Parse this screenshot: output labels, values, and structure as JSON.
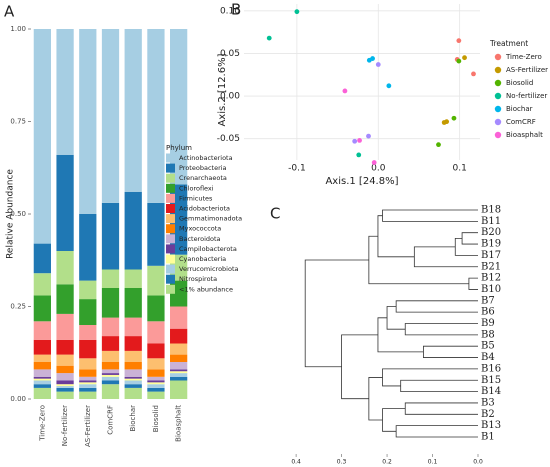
{
  "chart_data": [
    {
      "type": "bar",
      "stacked": true,
      "panel_label": "A",
      "ylabel": "Relative Abundance",
      "legend_title": "Phylum",
      "categories": [
        "Time-Zero",
        "No-fertilizer",
        "AS-Fertilizer",
        "ComCRF",
        "Biochar",
        "Biosolid",
        "Bioasphalt"
      ],
      "ylim": [
        0,
        1
      ],
      "yticks": [
        {
          "value": 0,
          "label": "0.00"
        },
        {
          "value": 0.25,
          "label": "0.25"
        },
        {
          "value": 0.5,
          "label": "0.50"
        },
        {
          "value": 0.75,
          "label": "0.75"
        },
        {
          "value": 1,
          "label": "1.00"
        }
      ],
      "series": [
        {
          "name": "Actinobacteriota",
          "color": "#a6cee3",
          "values": [
            0.58,
            0.34,
            0.5,
            0.47,
            0.44,
            0.47,
            0.42
          ]
        },
        {
          "name": "Proteobacteria",
          "color": "#1f78b4",
          "values": [
            0.08,
            0.26,
            0.18,
            0.18,
            0.21,
            0.17,
            0.19
          ]
        },
        {
          "name": "Crenarchaeota",
          "color": "#b2df8a",
          "values": [
            0.06,
            0.09,
            0.05,
            0.05,
            0.05,
            0.08,
            0.07
          ]
        },
        {
          "name": "Chloroflexi",
          "color": "#33a02c",
          "values": [
            0.07,
            0.08,
            0.07,
            0.08,
            0.08,
            0.07,
            0.07
          ]
        },
        {
          "name": "Firmicutes",
          "color": "#fb9a99",
          "values": [
            0.05,
            0.07,
            0.04,
            0.05,
            0.05,
            0.06,
            0.06
          ]
        },
        {
          "name": "Acidobacteriota",
          "color": "#e31a1c",
          "values": [
            0.04,
            0.04,
            0.05,
            0.04,
            0.04,
            0.04,
            0.04
          ]
        },
        {
          "name": "Gemmatimonadota",
          "color": "#fdbf6f",
          "values": [
            0.02,
            0.03,
            0.03,
            0.03,
            0.03,
            0.03,
            0.03
          ]
        },
        {
          "name": "Myxococcota",
          "color": "#ff7f00",
          "values": [
            0.02,
            0.02,
            0.02,
            0.02,
            0.02,
            0.02,
            0.02
          ]
        },
        {
          "name": "Bacteroidota",
          "color": "#cab2d6",
          "values": [
            0.02,
            0.02,
            0.01,
            0.01,
            0.02,
            0.01,
            0.02
          ]
        },
        {
          "name": "Campilobacterota",
          "color": "#6a3d9a",
          "values": [
            0.005,
            0.01,
            0.005,
            0.005,
            0.005,
            0.005,
            0.005
          ]
        },
        {
          "name": "Cyanobacteria",
          "color": "#ffff99",
          "values": [
            0.005,
            0.005,
            0.005,
            0.005,
            0.005,
            0.005,
            0.005
          ]
        },
        {
          "name": "Verrucomicrobiota",
          "color": "#a6cee3",
          "values": [
            0.01,
            0.005,
            0.01,
            0.01,
            0.01,
            0.01,
            0.01
          ]
        },
        {
          "name": "Nitrospirota",
          "color": "#1f78b4",
          "values": [
            0.01,
            0.01,
            0.01,
            0.01,
            0.01,
            0.01,
            0.01
          ]
        },
        {
          "name": "<1% abundance",
          "color": "#b2df8a",
          "values": [
            0.03,
            0.02,
            0.02,
            0.04,
            0.03,
            0.02,
            0.05
          ]
        }
      ]
    },
    {
      "type": "scatter",
      "panel_label": "B",
      "xlabel": "Axis.1  [24.8%]",
      "ylabel": "Axis.2  [12.6%]",
      "legend_title": "Treatment",
      "grid": true,
      "xlim": [
        -0.165,
        0.125
      ],
      "ylim": [
        -0.075,
        0.108
      ],
      "xticks": [
        -0.1,
        {
          "value": 0,
          "label": "0.0"
        },
        0.1
      ],
      "yticks": [
        {
          "value": -0.05,
          "label": "-0.05"
        },
        {
          "value": 0,
          "label": "0.00"
        },
        {
          "value": 0.05,
          "label": "0.05"
        },
        {
          "value": 0.1,
          "label": "0.10"
        }
      ],
      "series": [
        {
          "name": "Time-Zero",
          "color": "#f8766d",
          "x": [
            0.099,
            0.117,
            0.097
          ],
          "y": [
            0.065,
            0.026,
            0.043
          ]
        },
        {
          "name": "AS-Fertilizer",
          "color": "#c49a00",
          "x": [
            0.106,
            0.084,
            0.081
          ],
          "y": [
            0.045,
            -0.03,
            -0.031
          ]
        },
        {
          "name": "Biosolid",
          "color": "#53b400",
          "x": [
            0.099,
            0.093,
            0.074
          ],
          "y": [
            0.041,
            -0.026,
            -0.057
          ]
        },
        {
          "name": "No-fertilizer",
          "color": "#00c094",
          "x": [
            -0.1,
            -0.134,
            -0.024
          ],
          "y": [
            0.099,
            0.068,
            -0.069
          ]
        },
        {
          "name": "Biochar",
          "color": "#00b6eb",
          "x": [
            -0.007,
            0.013,
            -0.011
          ],
          "y": [
            0.044,
            0.012,
            0.042
          ]
        },
        {
          "name": "ComCRF",
          "color": "#a58aff",
          "x": [
            0,
            -0.012,
            -0.029
          ],
          "y": [
            0.037,
            -0.047,
            -0.053
          ]
        },
        {
          "name": "Bioasphalt",
          "color": "#fb61d7",
          "x": [
            -0.041,
            -0.023,
            -0.005
          ],
          "y": [
            0.006,
            -0.052,
            -0.078
          ]
        }
      ]
    },
    {
      "type": "dendrogram",
      "panel_label": "C",
      "xlim": [
        0.42,
        0
      ],
      "xticks": [
        0.4,
        0.3,
        0.2,
        0.1,
        {
          "value": 0,
          "label": "0.0"
        }
      ],
      "leaves": [
        {
          "label": "B18",
          "color": "#fb61d7"
        },
        {
          "label": "B11",
          "color": "#00c094"
        },
        {
          "label": "B20",
          "color": "#fb61d7"
        },
        {
          "label": "B19",
          "color": "#fb61d7"
        },
        {
          "label": "B17",
          "color": "#fb61d7"
        },
        {
          "label": "B21",
          "color": "#fb61d7"
        },
        {
          "label": "B12",
          "color": "#00c094"
        },
        {
          "label": "B10",
          "color": "#00c094"
        },
        {
          "label": "B7",
          "color": "#c49a00"
        },
        {
          "label": "B6",
          "color": "#c49a00"
        },
        {
          "label": "B9",
          "color": "#53b400"
        },
        {
          "label": "B8",
          "color": "#53b400"
        },
        {
          "label": "B5",
          "color": "#c49a00"
        },
        {
          "label": "B4",
          "color": "#c49a00"
        },
        {
          "label": "B16",
          "color": "#a58aff"
        },
        {
          "label": "B15",
          "color": "#00b6eb"
        },
        {
          "label": "B14",
          "color": "#00b6eb"
        },
        {
          "label": "B3",
          "color": "#f8766d"
        },
        {
          "label": "B2",
          "color": "#f8766d"
        },
        {
          "label": "B13",
          "color": "#00b6eb"
        },
        {
          "label": "B1",
          "color": "#f8766d"
        }
      ],
      "merges": [
        {
          "children": [
            2,
            3
          ],
          "height": 0.035
        },
        {
          "children": [
            21,
            4
          ],
          "height": 0.05
        },
        {
          "children": [
            22,
            5
          ],
          "height": 0.14
        },
        {
          "children": [
            0,
            1
          ],
          "height": 0.21
        },
        {
          "children": [
            24,
            23
          ],
          "height": 0.22
        },
        {
          "children": [
            6,
            7
          ],
          "height": 0.02
        },
        {
          "children": [
            25,
            26
          ],
          "height": 0.24
        },
        {
          "children": [
            8,
            9
          ],
          "height": 0.18
        },
        {
          "children": [
            10,
            11
          ],
          "height": 0.16
        },
        {
          "children": [
            28,
            29
          ],
          "height": 0.2
        },
        {
          "children": [
            12,
            13
          ],
          "height": 0.12
        },
        {
          "children": [
            30,
            31
          ],
          "height": 0.22
        },
        {
          "children": [
            17,
            18
          ],
          "height": 0.16
        },
        {
          "children": [
            19,
            20
          ],
          "height": 0.18
        },
        {
          "children": [
            33,
            34
          ],
          "height": 0.21
        },
        {
          "children": [
            15,
            16
          ],
          "height": 0.17
        },
        {
          "children": [
            14,
            36
          ],
          "height": 0.21
        },
        {
          "children": [
            37,
            35
          ],
          "height": 0.24
        },
        {
          "children": [
            32,
            38
          ],
          "height": 0.3
        },
        {
          "children": [
            27,
            39
          ],
          "height": 0.38
        }
      ]
    }
  ]
}
